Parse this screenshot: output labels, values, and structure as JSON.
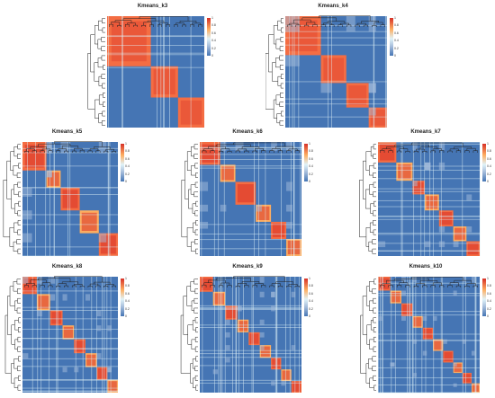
{
  "colors": {
    "low": "#4575b4",
    "mid": "#a6bddb",
    "light": "#e0f3f8",
    "high_mid": "#fdae61",
    "high": "#d73027",
    "dendrogram": "#222222"
  },
  "colorbar_ticks": [
    "1",
    "0.8",
    "0.6",
    "0.4",
    "0.2",
    "0"
  ],
  "chart_data": [
    {
      "type": "heatmap",
      "title": "Kmeans_k3",
      "value_range": [
        0,
        1
      ],
      "clusters": 3,
      "cluster_fractions": [
        0.45,
        0.28,
        0.27
      ],
      "grid": false,
      "legend": "right"
    },
    {
      "type": "heatmap",
      "title": "Kmeans_k4",
      "value_range": [
        0,
        1
      ],
      "clusters": 4,
      "cluster_fractions": [
        0.35,
        0.25,
        0.22,
        0.18
      ],
      "grid": false,
      "legend": "right"
    },
    {
      "type": "heatmap",
      "title": "Kmeans_k5",
      "value_range": [
        0,
        1
      ],
      "clusters": 5,
      "cluster_fractions": [
        0.25,
        0.15,
        0.2,
        0.2,
        0.2
      ],
      "grid": false,
      "legend": "right"
    },
    {
      "type": "heatmap",
      "title": "Kmeans_k6",
      "value_range": [
        0,
        1
      ],
      "clusters": 6,
      "cluster_fractions": [
        0.2,
        0.15,
        0.2,
        0.15,
        0.15,
        0.15
      ],
      "grid": false,
      "legend": "right"
    },
    {
      "type": "heatmap",
      "title": "Kmeans_k7",
      "value_range": [
        0,
        1
      ],
      "clusters": 7,
      "cluster_fractions": [
        0.18,
        0.16,
        0.12,
        0.14,
        0.14,
        0.13,
        0.13
      ],
      "grid": false,
      "legend": "right"
    },
    {
      "type": "heatmap",
      "title": "Kmeans_k8",
      "value_range": [
        0,
        1
      ],
      "clusters": 8,
      "cluster_fractions": [
        0.15,
        0.14,
        0.13,
        0.12,
        0.12,
        0.12,
        0.11,
        0.11
      ],
      "grid": false,
      "legend": "right"
    },
    {
      "type": "heatmap",
      "title": "Kmeans_k9",
      "value_range": [
        0,
        1
      ],
      "clusters": 9,
      "cluster_fractions": [
        0.13,
        0.12,
        0.12,
        0.11,
        0.11,
        0.11,
        0.1,
        0.1,
        0.1
      ],
      "grid": false,
      "legend": "right"
    },
    {
      "type": "heatmap",
      "title": "Kmeans_k10",
      "value_range": [
        0,
        1
      ],
      "clusters": 10,
      "cluster_fractions": [
        0.12,
        0.11,
        0.11,
        0.1,
        0.1,
        0.1,
        0.1,
        0.09,
        0.09,
        0.08
      ],
      "grid": false,
      "legend": "right"
    }
  ]
}
